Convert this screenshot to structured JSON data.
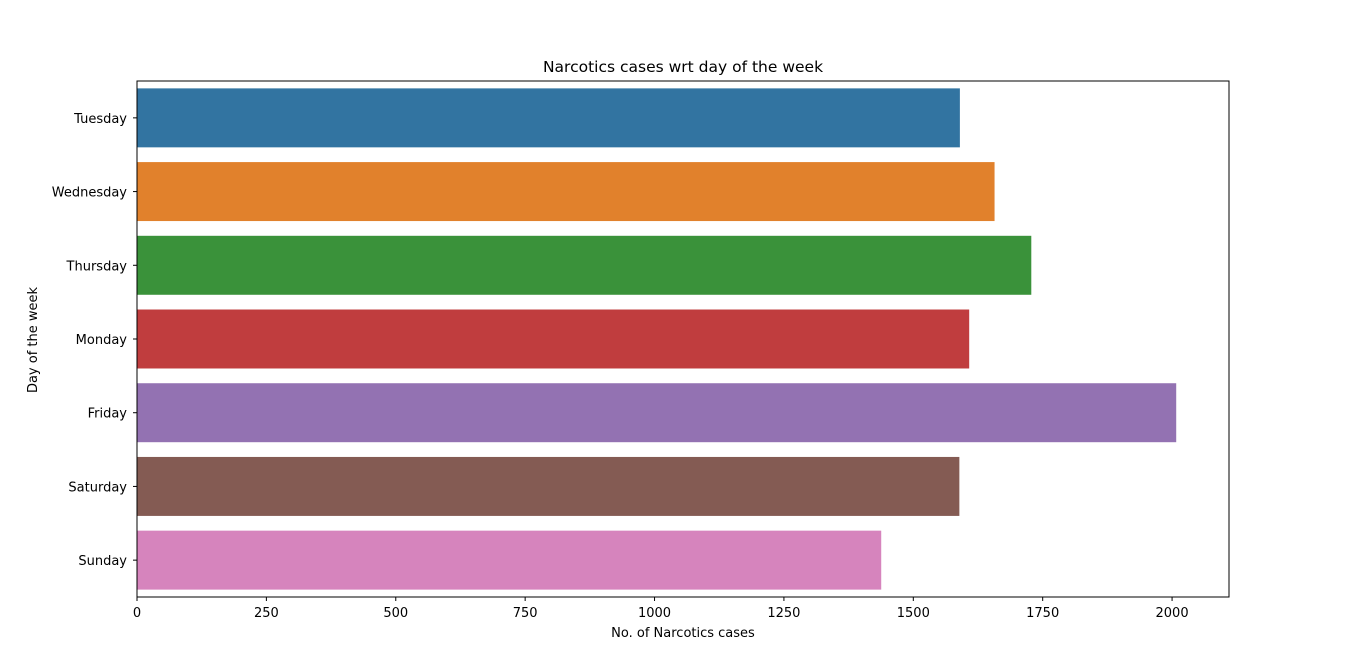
{
  "chart_data": {
    "type": "bar",
    "orientation": "horizontal",
    "title": "Narcotics cases wrt day of the week",
    "xlabel": "No. of Narcotics cases",
    "ylabel": "Day of the week",
    "categories": [
      "Tuesday",
      "Wednesday",
      "Thursday",
      "Monday",
      "Friday",
      "Saturday",
      "Sunday"
    ],
    "values": [
      1590,
      1657,
      1728,
      1608,
      2008,
      1589,
      1438
    ],
    "colors": [
      "#3274a1",
      "#e1812c",
      "#3a923a",
      "#c03d3e",
      "#9372b2",
      "#845b53",
      "#d684bd"
    ],
    "xlim": [
      0,
      2110
    ],
    "xticks": [
      0,
      250,
      500,
      750,
      1000,
      1250,
      1500,
      1750,
      2000
    ],
    "grid": false,
    "legend": "none"
  }
}
